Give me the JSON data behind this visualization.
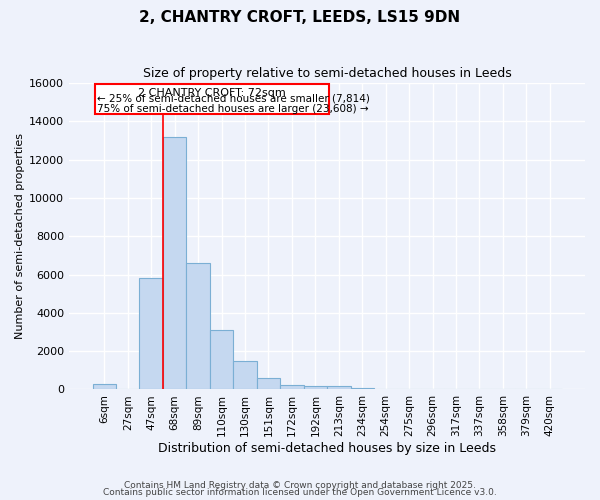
{
  "title": "2, CHANTRY CROFT, LEEDS, LS15 9DN",
  "subtitle": "Size of property relative to semi-detached houses in Leeds",
  "xlabel": "Distribution of semi-detached houses by size in Leeds",
  "ylabel": "Number of semi-detached properties",
  "categories": [
    "6sqm",
    "27sqm",
    "47sqm",
    "68sqm",
    "89sqm",
    "110sqm",
    "130sqm",
    "151sqm",
    "172sqm",
    "192sqm",
    "213sqm",
    "234sqm",
    "254sqm",
    "275sqm",
    "296sqm",
    "317sqm",
    "337sqm",
    "358sqm",
    "379sqm",
    "420sqm"
  ],
  "values": [
    300,
    0,
    5800,
    13200,
    6600,
    3100,
    1500,
    600,
    250,
    200,
    200,
    100,
    50,
    0,
    0,
    0,
    0,
    0,
    0,
    0
  ],
  "bar_color": "#c5d8f0",
  "bar_edgecolor": "#7bafd4",
  "bar_width": 1.0,
  "ylim": [
    0,
    16000
  ],
  "yticks": [
    0,
    2000,
    4000,
    6000,
    8000,
    10000,
    12000,
    14000,
    16000
  ],
  "property_label": "2 CHANTRY CROFT: 72sqm",
  "pct_smaller": 25,
  "pct_larger": 75,
  "count_smaller": 7814,
  "count_larger": 23608,
  "vline_x": 3.0,
  "background_color": "#eef2fb",
  "grid_color": "#ffffff",
  "footer_line1": "Contains HM Land Registry data © Crown copyright and database right 2025.",
  "footer_line2": "Contains public sector information licensed under the Open Government Licence v3.0."
}
